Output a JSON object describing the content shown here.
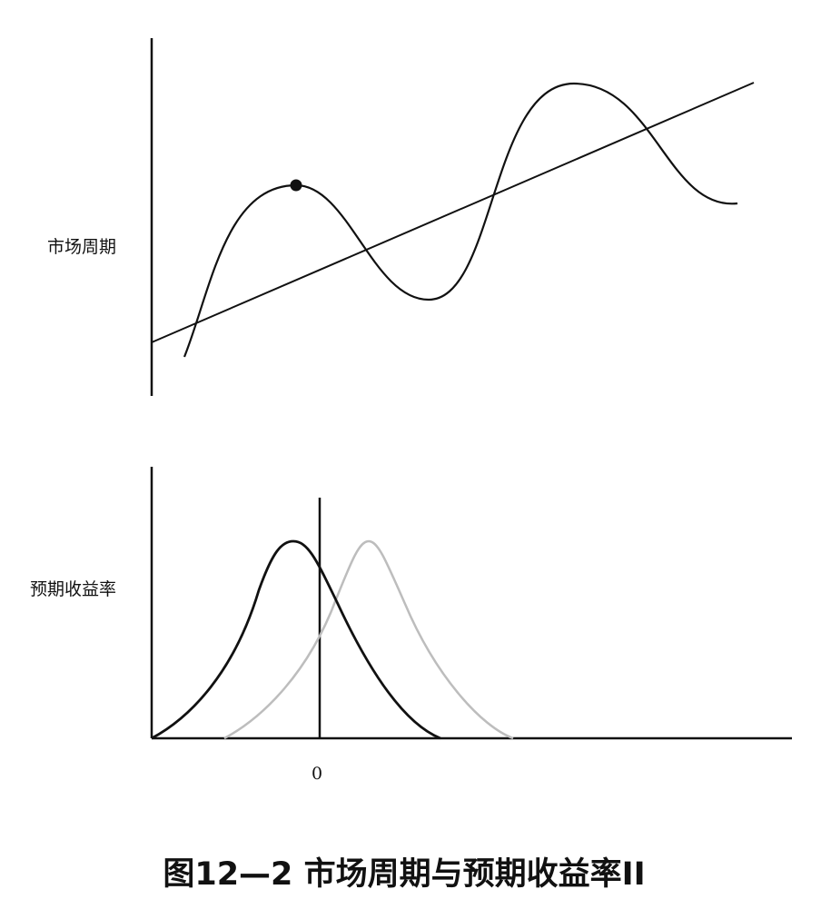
{
  "top_panel": {
    "ylabel": "市场周期"
  },
  "bottom_panel": {
    "ylabel": "预期收益率",
    "x_tick": "0"
  },
  "caption": "图12—2 市场周期与预期收益率II",
  "colors": {
    "ink": "#111111",
    "shifted_curve": "#bdbdbd"
  }
}
